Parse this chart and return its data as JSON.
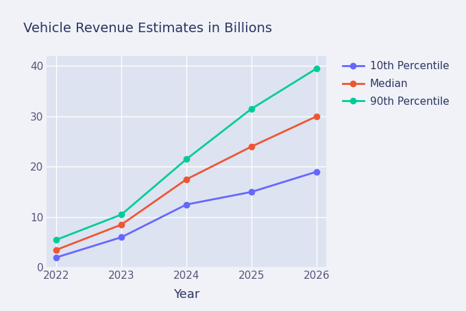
{
  "title": "Vehicle Revenue Estimates in Billions",
  "xlabel": "Year",
  "years": [
    2022,
    2023,
    2024,
    2025,
    2026
  ],
  "series": [
    {
      "label": "10th Percentile",
      "values": [
        2,
        6,
        12.5,
        15,
        19
      ],
      "color": "#6666ff",
      "marker": "o"
    },
    {
      "label": "Median",
      "values": [
        3.5,
        8.5,
        17.5,
        24,
        30
      ],
      "color": "#ee5533",
      "marker": "o"
    },
    {
      "label": "90th Percentile",
      "values": [
        5.5,
        10.5,
        21.5,
        31.5,
        39.5
      ],
      "color": "#00cc99",
      "marker": "o"
    }
  ],
  "ylim": [
    0,
    42
  ],
  "yticks": [
    0,
    10,
    20,
    30,
    40
  ],
  "plot_bg": "#dde3f0",
  "fig_bg": "#f0f2f8",
  "grid_color": "#ffffff",
  "title_color": "#2d3561",
  "tick_color": "#555577",
  "xlabel_color": "#2d3561",
  "title_fontsize": 14,
  "tick_fontsize": 11,
  "xlabel_fontsize": 13,
  "legend_fontsize": 11,
  "linewidth": 2.0,
  "markersize": 6
}
